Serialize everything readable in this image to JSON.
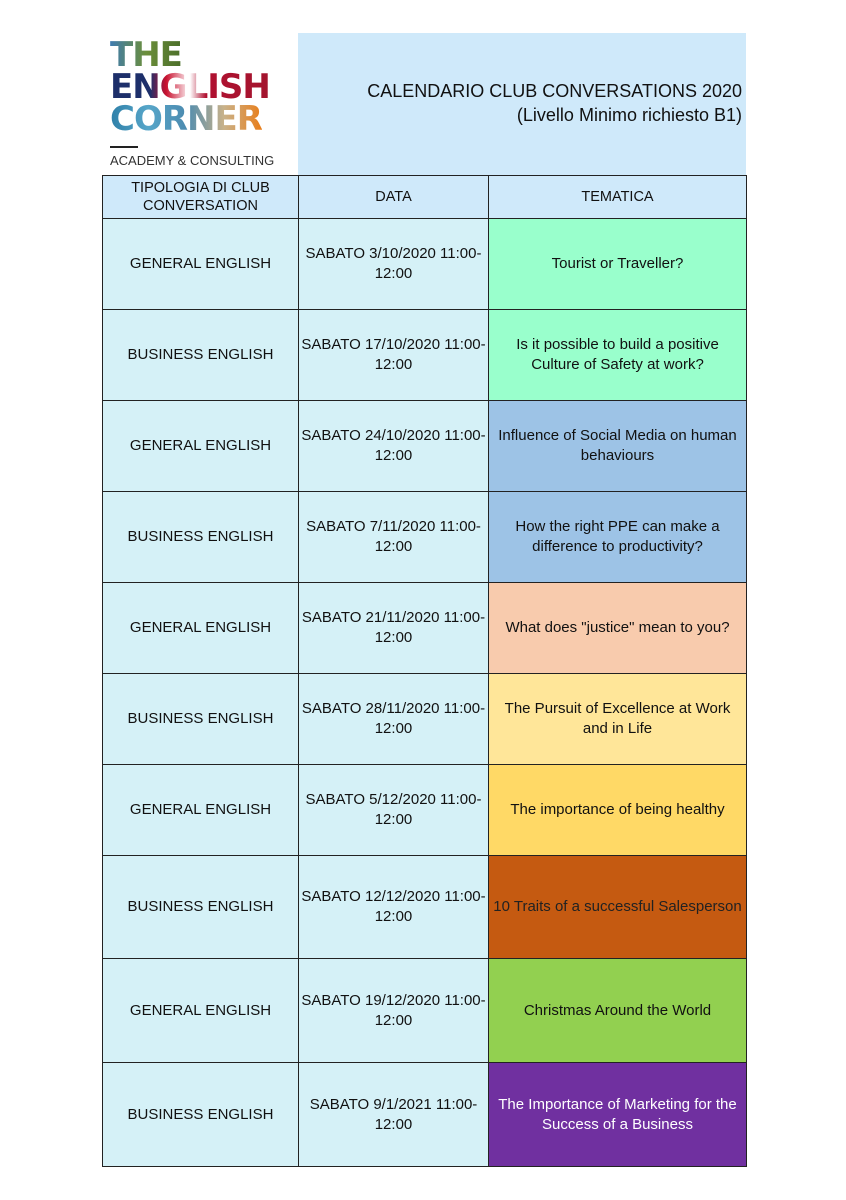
{
  "logo": {
    "line1": "THE",
    "line2": "ENGLISH",
    "line3": "CORNER",
    "tagline": "ACADEMY & CONSULTING"
  },
  "header": {
    "title": "CALENDARIO CLUB CONVERSATIONS 2020",
    "subtitle": "(Livello Minimo richiesto B1)"
  },
  "table": {
    "columns": [
      "TIPOLOGIA DI CLUB CONVERSATION",
      "DATA",
      "TEMATICA"
    ],
    "rows": [
      {
        "type": "GENERAL ENGLISH",
        "date": "SABATO 3/10/2020 11:00-12:00",
        "theme": "Tourist or Traveller?",
        "color": "#99ffcc",
        "text_color": "#111111"
      },
      {
        "type": "BUSINESS ENGLISH",
        "date": "SABATO 17/10/2020 11:00-12:00",
        "theme": "Is it possible to build a positive Culture of Safety at work?",
        "color": "#99ffcc",
        "text_color": "#111111"
      },
      {
        "type": "GENERAL ENGLISH",
        "date": "SABATO 24/10/2020 11:00-12:00",
        "theme": "Influence of Social Media on human behaviours",
        "color": "#9dc3e6",
        "text_color": "#111111"
      },
      {
        "type": "BUSINESS ENGLISH",
        "date": "SABATO 7/11/2020 11:00-12:00",
        "theme": "How the right PPE can make a difference to productivity?",
        "color": "#9dc3e6",
        "text_color": "#111111"
      },
      {
        "type": "GENERAL ENGLISH",
        "date": "SABATO 21/11/2020 11:00-12:00",
        "theme": "What does \"justice\" mean to you?",
        "color": "#f8cbad",
        "text_color": "#111111"
      },
      {
        "type": "BUSINESS ENGLISH",
        "date": "SABATO 28/11/2020 11:00-12:00",
        "theme": "The Pursuit of Excellence at Work and in Life",
        "color": "#ffe699",
        "text_color": "#111111"
      },
      {
        "type": "GENERAL ENGLISH",
        "date": "SABATO 5/12/2020 11:00-12:00",
        "theme": "The importance of being healthy",
        "color": "#ffd966",
        "text_color": "#111111"
      },
      {
        "type": "BUSINESS ENGLISH",
        "date": "SABATO 12/12/2020 11:00-12:00",
        "theme": "10 Traits of a successful Salesperson",
        "color": "#c55a11",
        "text_color": "#222222"
      },
      {
        "type": "GENERAL ENGLISH",
        "date": "SABATO 19/12/2020 11:00-12:00",
        "theme": "Christmas Around the World",
        "color": "#92d050",
        "text_color": "#111111"
      },
      {
        "type": "BUSINESS ENGLISH",
        "date": "SABATO 9/1/2021 11:00-12:00",
        "theme": "The Importance of Marketing for the Success of a Business",
        "color": "#7030a0",
        "text_color": "#ffffff"
      }
    ]
  }
}
